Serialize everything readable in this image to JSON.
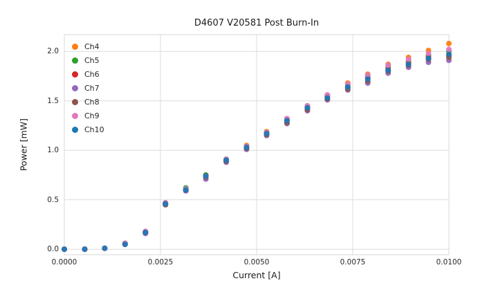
{
  "chart_data": {
    "type": "scatter",
    "title": "D4607 V20581 Post Burn-In",
    "xlabel": "Current [A]",
    "ylabel": "Power [mW]",
    "xlim": [
      0.0,
      0.01
    ],
    "ylim": [
      -0.055,
      2.17
    ],
    "grid": true,
    "legend_position": "upper left",
    "xticks": {
      "values": [
        0.0,
        0.0025,
        0.005,
        0.0075,
        0.01
      ],
      "labels": [
        "0.0000",
        "0.0025",
        "0.0050",
        "0.0075",
        "0.0100"
      ]
    },
    "yticks": {
      "values": [
        0.0,
        0.5,
        1.0,
        1.5,
        2.0
      ],
      "labels": [
        "0.0",
        "0.5",
        "1.0",
        "1.5",
        "2.0"
      ]
    },
    "x": [
      0.0,
      0.00053,
      0.00105,
      0.00158,
      0.00211,
      0.00263,
      0.00316,
      0.00368,
      0.00421,
      0.00474,
      0.00526,
      0.00579,
      0.00632,
      0.00684,
      0.00737,
      0.00789,
      0.00842,
      0.00895,
      0.00947,
      0.01
    ],
    "series": [
      {
        "name": "Ch4",
        "color": "#ff7f0e",
        "values": [
          0.0,
          0.0,
          0.01,
          0.06,
          0.18,
          0.47,
          0.61,
          0.75,
          0.91,
          1.05,
          1.19,
          1.32,
          1.45,
          1.56,
          1.68,
          1.77,
          1.87,
          1.94,
          2.01,
          2.08
        ]
      },
      {
        "name": "Ch5",
        "color": "#2ca02c",
        "values": [
          0.0,
          0.0,
          0.01,
          0.06,
          0.17,
          0.46,
          0.62,
          0.75,
          0.91,
          1.04,
          1.18,
          1.31,
          1.44,
          1.55,
          1.66,
          1.75,
          1.84,
          1.9,
          1.96,
          2.0
        ]
      },
      {
        "name": "Ch6",
        "color": "#d62728",
        "values": [
          0.0,
          0.0,
          0.01,
          0.06,
          0.17,
          0.46,
          0.6,
          0.74,
          0.9,
          1.03,
          1.17,
          1.3,
          1.43,
          1.54,
          1.64,
          1.73,
          1.82,
          1.88,
          1.94,
          1.96
        ]
      },
      {
        "name": "Ch7",
        "color": "#9467bd",
        "values": [
          0.0,
          0.0,
          0.01,
          0.05,
          0.16,
          0.45,
          0.59,
          0.71,
          0.88,
          1.01,
          1.15,
          1.27,
          1.4,
          1.51,
          1.61,
          1.68,
          1.78,
          1.84,
          1.89,
          1.91
        ]
      },
      {
        "name": "Ch8",
        "color": "#8c564b",
        "values": [
          0.0,
          0.0,
          0.01,
          0.05,
          0.17,
          0.45,
          0.6,
          0.73,
          0.89,
          1.02,
          1.16,
          1.28,
          1.41,
          1.52,
          1.62,
          1.7,
          1.8,
          1.86,
          1.92,
          1.94
        ]
      },
      {
        "name": "Ch9",
        "color": "#e377c2",
        "values": [
          0.0,
          0.0,
          0.01,
          0.06,
          0.18,
          0.47,
          0.61,
          0.74,
          0.91,
          1.04,
          1.18,
          1.32,
          1.45,
          1.56,
          1.67,
          1.76,
          1.86,
          1.92,
          1.98,
          2.02
        ]
      },
      {
        "name": "Ch10",
        "color": "#1f77b4",
        "values": [
          0.0,
          0.0,
          0.01,
          0.05,
          0.17,
          0.46,
          0.6,
          0.74,
          0.9,
          1.03,
          1.17,
          1.3,
          1.43,
          1.53,
          1.64,
          1.72,
          1.81,
          1.87,
          1.93,
          1.97
        ]
      }
    ]
  }
}
